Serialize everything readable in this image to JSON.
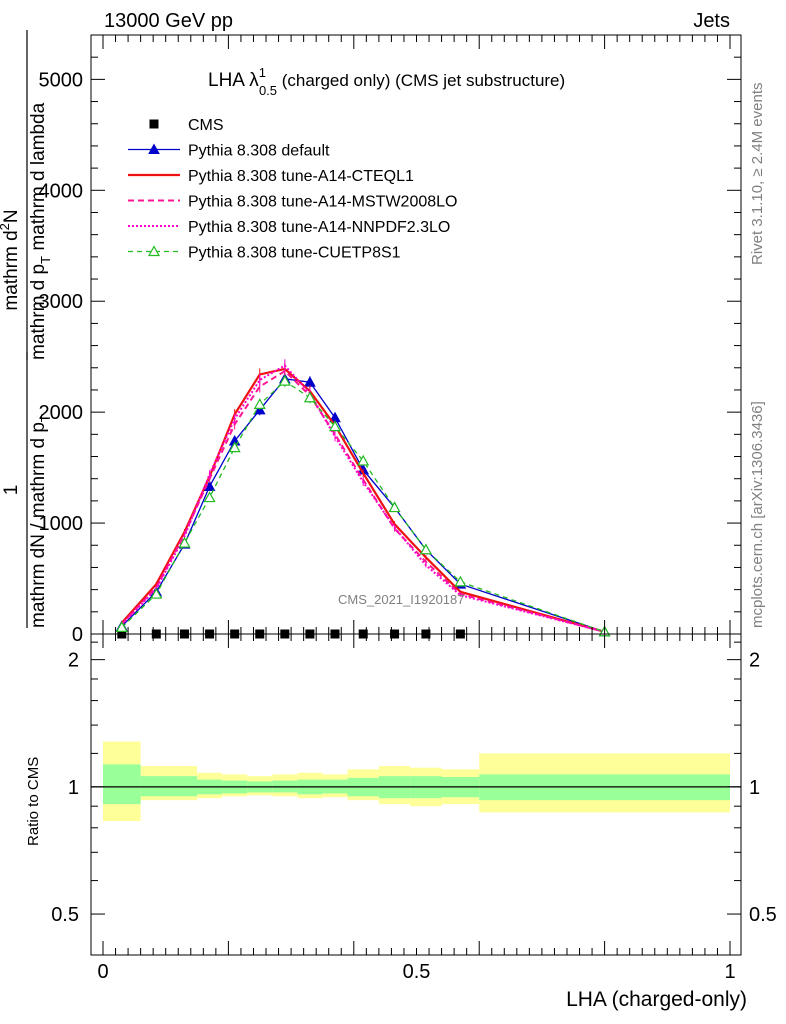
{
  "header": {
    "left": "13000 GeV pp",
    "right": "Jets"
  },
  "side_labels": {
    "rivet": "Rivet 3.1.10, ≥ 2.4M events",
    "mcplots": "mcplots.cern.ch [arXiv:1306.3436]"
  },
  "watermark": "CMS_2021_I1920187",
  "colors": {
    "data": "#000000",
    "default": "#0000cc",
    "cteql1": "#ee1111",
    "mstw": "#ff1493",
    "nnpdf": "#ff00cc",
    "cuetp": "#22bb22",
    "band_inner": "#99ff99",
    "band_outer": "#ffff99"
  },
  "chart_data": [
    {
      "type": "line",
      "title": "LHA λ^1_0.5 (charged only) (CMS jet substructure)",
      "title_main": "LHA λ",
      "title_sup": "1",
      "title_sub": "0.5",
      "title_rest": " (charged only) (CMS jet substructure)",
      "ylabel": "1 / mathrm dN / mathrm d p_T mathrm d^2N / mathrm d p_T mathrm d lambda",
      "ylabel_parts": {
        "frac1_num": "1",
        "frac1_den_a": "mathrm d",
        "frac1_den_b": "N / mathrm d p",
        "frac1_den_sub": "T",
        "frac2_num_a": "mathrm d",
        "frac2_num_sup": "2",
        "frac2_num_b": "N",
        "frac2_den_a": "mathrm d p",
        "frac2_den_sub": "T",
        "frac2_den_b": " mathrm d lambda"
      },
      "xlim": [
        0,
        1
      ],
      "ylim": [
        0,
        5400
      ],
      "yticks": [
        0,
        1000,
        2000,
        3000,
        4000,
        5000
      ],
      "ytick_labels": [
        "0",
        "1000",
        "2000",
        "3000",
        "4000",
        "5000"
      ],
      "legend_position": "top-left",
      "series": [
        {
          "name": "CMS",
          "style": "data",
          "x": [
            0.03,
            0.085,
            0.13,
            0.17,
            0.21,
            0.25,
            0.29,
            0.33,
            0.37,
            0.415,
            0.465,
            0.515,
            0.57
          ],
          "y": [
            0,
            0,
            0,
            0,
            0,
            0,
            0,
            0,
            0,
            0,
            0,
            0,
            0
          ]
        },
        {
          "name": "Pythia 8.308 default",
          "style": "default",
          "x": [
            0.03,
            0.085,
            0.13,
            0.17,
            0.21,
            0.25,
            0.29,
            0.33,
            0.37,
            0.415,
            0.465,
            0.515,
            0.57,
            0.8
          ],
          "y": [
            70,
            380,
            810,
            1330,
            1740,
            2020,
            2300,
            2270,
            1950,
            1480,
            1140,
            760,
            450,
            20
          ]
        },
        {
          "name": "Pythia 8.308 tune-A14-CTEQL1",
          "style": "cteql1",
          "x": [
            0.03,
            0.085,
            0.13,
            0.17,
            0.21,
            0.25,
            0.29,
            0.33,
            0.37,
            0.415,
            0.465,
            0.515,
            0.57,
            0.8
          ],
          "y": [
            100,
            450,
            920,
            1420,
            1980,
            2340,
            2390,
            2190,
            1880,
            1450,
            990,
            690,
            380,
            20
          ]
        },
        {
          "name": "Pythia 8.308 tune-A14-MSTW2008LO",
          "style": "mstw",
          "x": [
            0.03,
            0.085,
            0.13,
            0.17,
            0.21,
            0.25,
            0.29,
            0.33,
            0.37,
            0.415,
            0.465,
            0.515,
            0.57,
            0.8
          ],
          "y": [
            90,
            420,
            900,
            1400,
            1890,
            2230,
            2370,
            2150,
            1800,
            1390,
            950,
            650,
            360,
            20
          ]
        },
        {
          "name": "Pythia 8.308 tune-A14-NNPDF2.3LO",
          "style": "nnpdf",
          "x": [
            0.03,
            0.085,
            0.13,
            0.17,
            0.21,
            0.25,
            0.29,
            0.33,
            0.37,
            0.415,
            0.465,
            0.515,
            0.57,
            0.8
          ],
          "y": [
            85,
            410,
            880,
            1440,
            1940,
            2290,
            2420,
            2170,
            1780,
            1370,
            960,
            620,
            350,
            20
          ]
        },
        {
          "name": "Pythia 8.308 tune-CUETP8S1",
          "style": "cuetp",
          "x": [
            0.03,
            0.085,
            0.13,
            0.17,
            0.21,
            0.25,
            0.29,
            0.33,
            0.37,
            0.415,
            0.465,
            0.515,
            0.57,
            0.8
          ],
          "y": [
            60,
            360,
            820,
            1230,
            1680,
            2070,
            2280,
            2130,
            1870,
            1560,
            1140,
            760,
            470,
            20
          ]
        }
      ]
    },
    {
      "type": "area",
      "ylabel": "Ratio to CMS",
      "xlabel": "LHA (charged-only)",
      "xlim": [
        0,
        1
      ],
      "ylim": [
        0.4,
        2.3
      ],
      "log_y": true,
      "xticks": [
        0,
        0.5,
        1
      ],
      "xtick_labels": [
        "0",
        "0.5",
        "1"
      ],
      "yticks": [
        0.5,
        1,
        2
      ],
      "ytick_labels": [
        "0.5",
        "1",
        "2"
      ],
      "reference_line": 1,
      "bins": [
        {
          "x0": 0.0,
          "x1": 0.06,
          "inner": [
            0.91,
            1.13
          ],
          "outer": [
            0.83,
            1.28
          ]
        },
        {
          "x0": 0.06,
          "x1": 0.15,
          "inner": [
            0.95,
            1.06
          ],
          "outer": [
            0.93,
            1.12
          ]
        },
        {
          "x0": 0.15,
          "x1": 0.19,
          "inner": [
            0.96,
            1.04
          ],
          "outer": [
            0.94,
            1.08
          ]
        },
        {
          "x0": 0.19,
          "x1": 0.23,
          "inner": [
            0.965,
            1.035
          ],
          "outer": [
            0.95,
            1.07
          ]
        },
        {
          "x0": 0.23,
          "x1": 0.27,
          "inner": [
            0.97,
            1.03
          ],
          "outer": [
            0.955,
            1.06
          ]
        },
        {
          "x0": 0.27,
          "x1": 0.31,
          "inner": [
            0.97,
            1.035
          ],
          "outer": [
            0.95,
            1.07
          ]
        },
        {
          "x0": 0.31,
          "x1": 0.35,
          "inner": [
            0.96,
            1.04
          ],
          "outer": [
            0.94,
            1.08
          ]
        },
        {
          "x0": 0.35,
          "x1": 0.39,
          "inner": [
            0.965,
            1.04
          ],
          "outer": [
            0.945,
            1.07
          ]
        },
        {
          "x0": 0.39,
          "x1": 0.44,
          "inner": [
            0.95,
            1.05
          ],
          "outer": [
            0.93,
            1.1
          ]
        },
        {
          "x0": 0.44,
          "x1": 0.49,
          "inner": [
            0.94,
            1.06
          ],
          "outer": [
            0.91,
            1.12
          ]
        },
        {
          "x0": 0.49,
          "x1": 0.54,
          "inner": [
            0.94,
            1.06
          ],
          "outer": [
            0.9,
            1.11
          ]
        },
        {
          "x0": 0.54,
          "x1": 0.6,
          "inner": [
            0.945,
            1.055
          ],
          "outer": [
            0.91,
            1.1
          ]
        },
        {
          "x0": 0.6,
          "x1": 1.0,
          "inner": [
            0.93,
            1.07
          ],
          "outer": [
            0.87,
            1.2
          ]
        }
      ]
    }
  ]
}
